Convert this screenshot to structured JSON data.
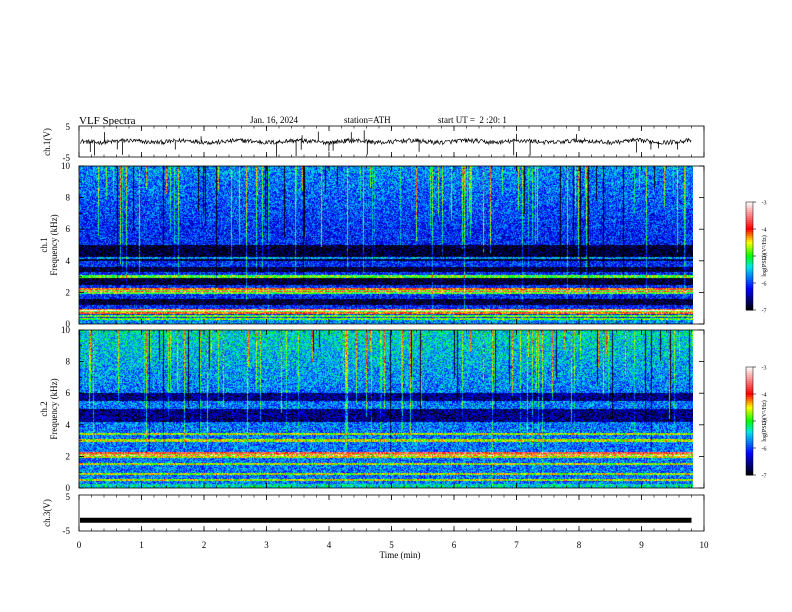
{
  "header": {
    "title": "VLF Spectra",
    "date": "Jan. 16, 2024",
    "station": "station=ATH",
    "start_ut": "start UT =  2 :20: 1"
  },
  "colorbar": {
    "label": "log(PSD)(V²/Hz)",
    "ticks": [
      "-3",
      "-4",
      "-5",
      "-6",
      "-7"
    ],
    "colors": [
      "#ffffff",
      "#ff8080",
      "#ff0000",
      "#ffff00",
      "#00ff00",
      "#00ffff",
      "#0080ff",
      "#0000ff",
      "#000080",
      "#000000"
    ]
  },
  "chart_data": [
    {
      "type": "line",
      "name": "ch1-waveform",
      "ylabel": "ch.1(V)",
      "ylim": [
        -5,
        5
      ],
      "yticks": [
        "5",
        "-5"
      ],
      "xlim": [
        0,
        10
      ],
      "baseline_v": 0.0,
      "noise_amplitude_v": 0.8
    },
    {
      "type": "heatmap",
      "name": "ch1-spectrogram",
      "ylabel_line1": "ch.1",
      "ylabel_line2": "Frequency (kHz)",
      "ylim": [
        0,
        10
      ],
      "yticks": [
        "0",
        "2",
        "4",
        "6",
        "8",
        "10"
      ],
      "xlim": [
        0,
        9.8
      ],
      "zlim": [
        -7,
        -3
      ],
      "background_level": -6.1,
      "dark_bands_khz": [
        [
          4.0,
          5.0
        ],
        [
          3.3,
          3.6
        ],
        [
          2.5,
          2.9
        ],
        [
          1.2,
          1.6
        ]
      ],
      "bright_lines_khz": [
        2.1,
        2.0,
        4.2,
        3.0,
        0.8,
        0.5,
        0.3
      ],
      "red_lines_khz": [
        2.2,
        0.7,
        0.9
      ]
    },
    {
      "type": "heatmap",
      "name": "ch2-spectrogram",
      "ylabel_line1": "ch.2",
      "ylabel_line2": "Frequency (kHz)",
      "ylim": [
        0,
        10
      ],
      "yticks": [
        "0",
        "2",
        "4",
        "6",
        "8",
        "10"
      ],
      "xlim": [
        0,
        9.8
      ],
      "zlim": [
        -7,
        -3
      ],
      "background_level": -5.8,
      "dark_bands_khz": [
        [
          4.2,
          5.0
        ],
        [
          5.5,
          6.0
        ]
      ],
      "bright_lines_khz": [
        2.1,
        2.0,
        3.4,
        3.0,
        1.5,
        0.9,
        0.5
      ],
      "red_lines_khz": [
        2.2
      ]
    },
    {
      "type": "line",
      "name": "ch3-waveform",
      "ylabel": "ch.3(V)",
      "ylim": [
        -5,
        5
      ],
      "yticks": [
        "5",
        "-5"
      ],
      "xlim": [
        0,
        10
      ],
      "baseline_v": -2.0,
      "noise_amplitude_v": 0.05
    }
  ],
  "xaxis": {
    "label": "Time (min)",
    "ticks": [
      "0",
      "1",
      "2",
      "3",
      "4",
      "5",
      "6",
      "7",
      "8",
      "9",
      "10"
    ],
    "range": [
      0,
      10
    ]
  }
}
